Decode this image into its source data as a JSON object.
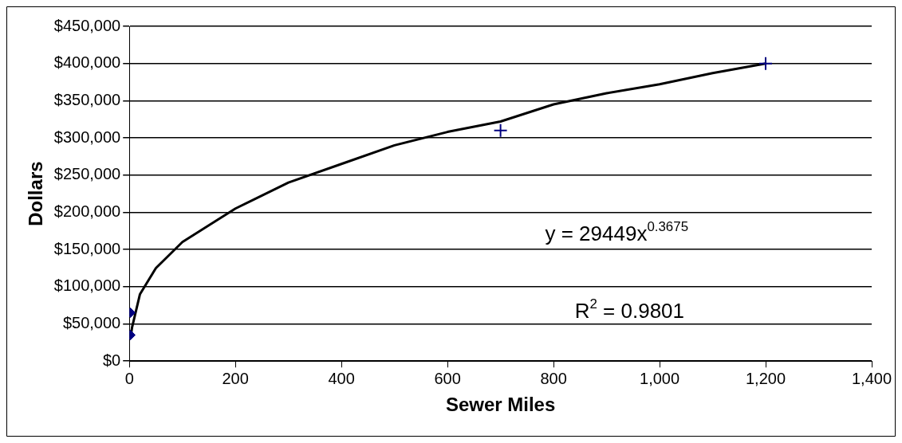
{
  "chart_data": {
    "type": "scatter",
    "xlabel": "Sewer Miles",
    "ylabel": "Dollars",
    "legend": false,
    "grid": "y",
    "xlim": [
      0,
      1400
    ],
    "ylim": [
      0,
      450000
    ],
    "xticks": [
      0,
      200,
      400,
      600,
      800,
      {
        "value": 1000,
        "label": "1,000"
      },
      {
        "value": 1200,
        "label": "1,200"
      },
      {
        "value": 1400,
        "label": "1,400"
      }
    ],
    "yticks": [
      {
        "value": 0,
        "label": "$0"
      },
      {
        "value": 50000,
        "label": "$50,000"
      },
      {
        "value": 100000,
        "label": "$100,000"
      },
      {
        "value": 150000,
        "label": "$150,000"
      },
      {
        "value": 200000,
        "label": "$200,000"
      },
      {
        "value": 250000,
        "label": "$250,000"
      },
      {
        "value": 300000,
        "label": "$300,000"
      },
      {
        "value": 350000,
        "label": "$350,000"
      },
      {
        "value": 400000,
        "label": "$400,000"
      },
      {
        "value": 450000,
        "label": "$450,000"
      }
    ],
    "series": [
      {
        "color": "#000080",
        "marker": "diamond",
        "x": [
          2,
          2
        ],
        "values": [
          65000,
          35000
        ]
      },
      {
        "color": "#000080",
        "marker": "cross",
        "x": [
          700,
          1200
        ],
        "values": [
          310000,
          400000
        ]
      },
      {
        "type": "line",
        "color": "#000000",
        "marker": "none",
        "line_style": "solid",
        "x": [
          2,
          5,
          20,
          50,
          100,
          200,
          300,
          400,
          500,
          600,
          700,
          800,
          900,
          1000,
          1100,
          1200
        ],
        "values": [
          30000,
          45000,
          90000,
          125000,
          160000,
          205000,
          240000,
          265000,
          290000,
          308000,
          322000,
          345000,
          360000,
          372000,
          387000,
          400000
        ]
      }
    ],
    "annotations": [
      "y = 29449x$^{0.3675}$",
      "R$^{2}$ = 0.9801"
    ]
  }
}
